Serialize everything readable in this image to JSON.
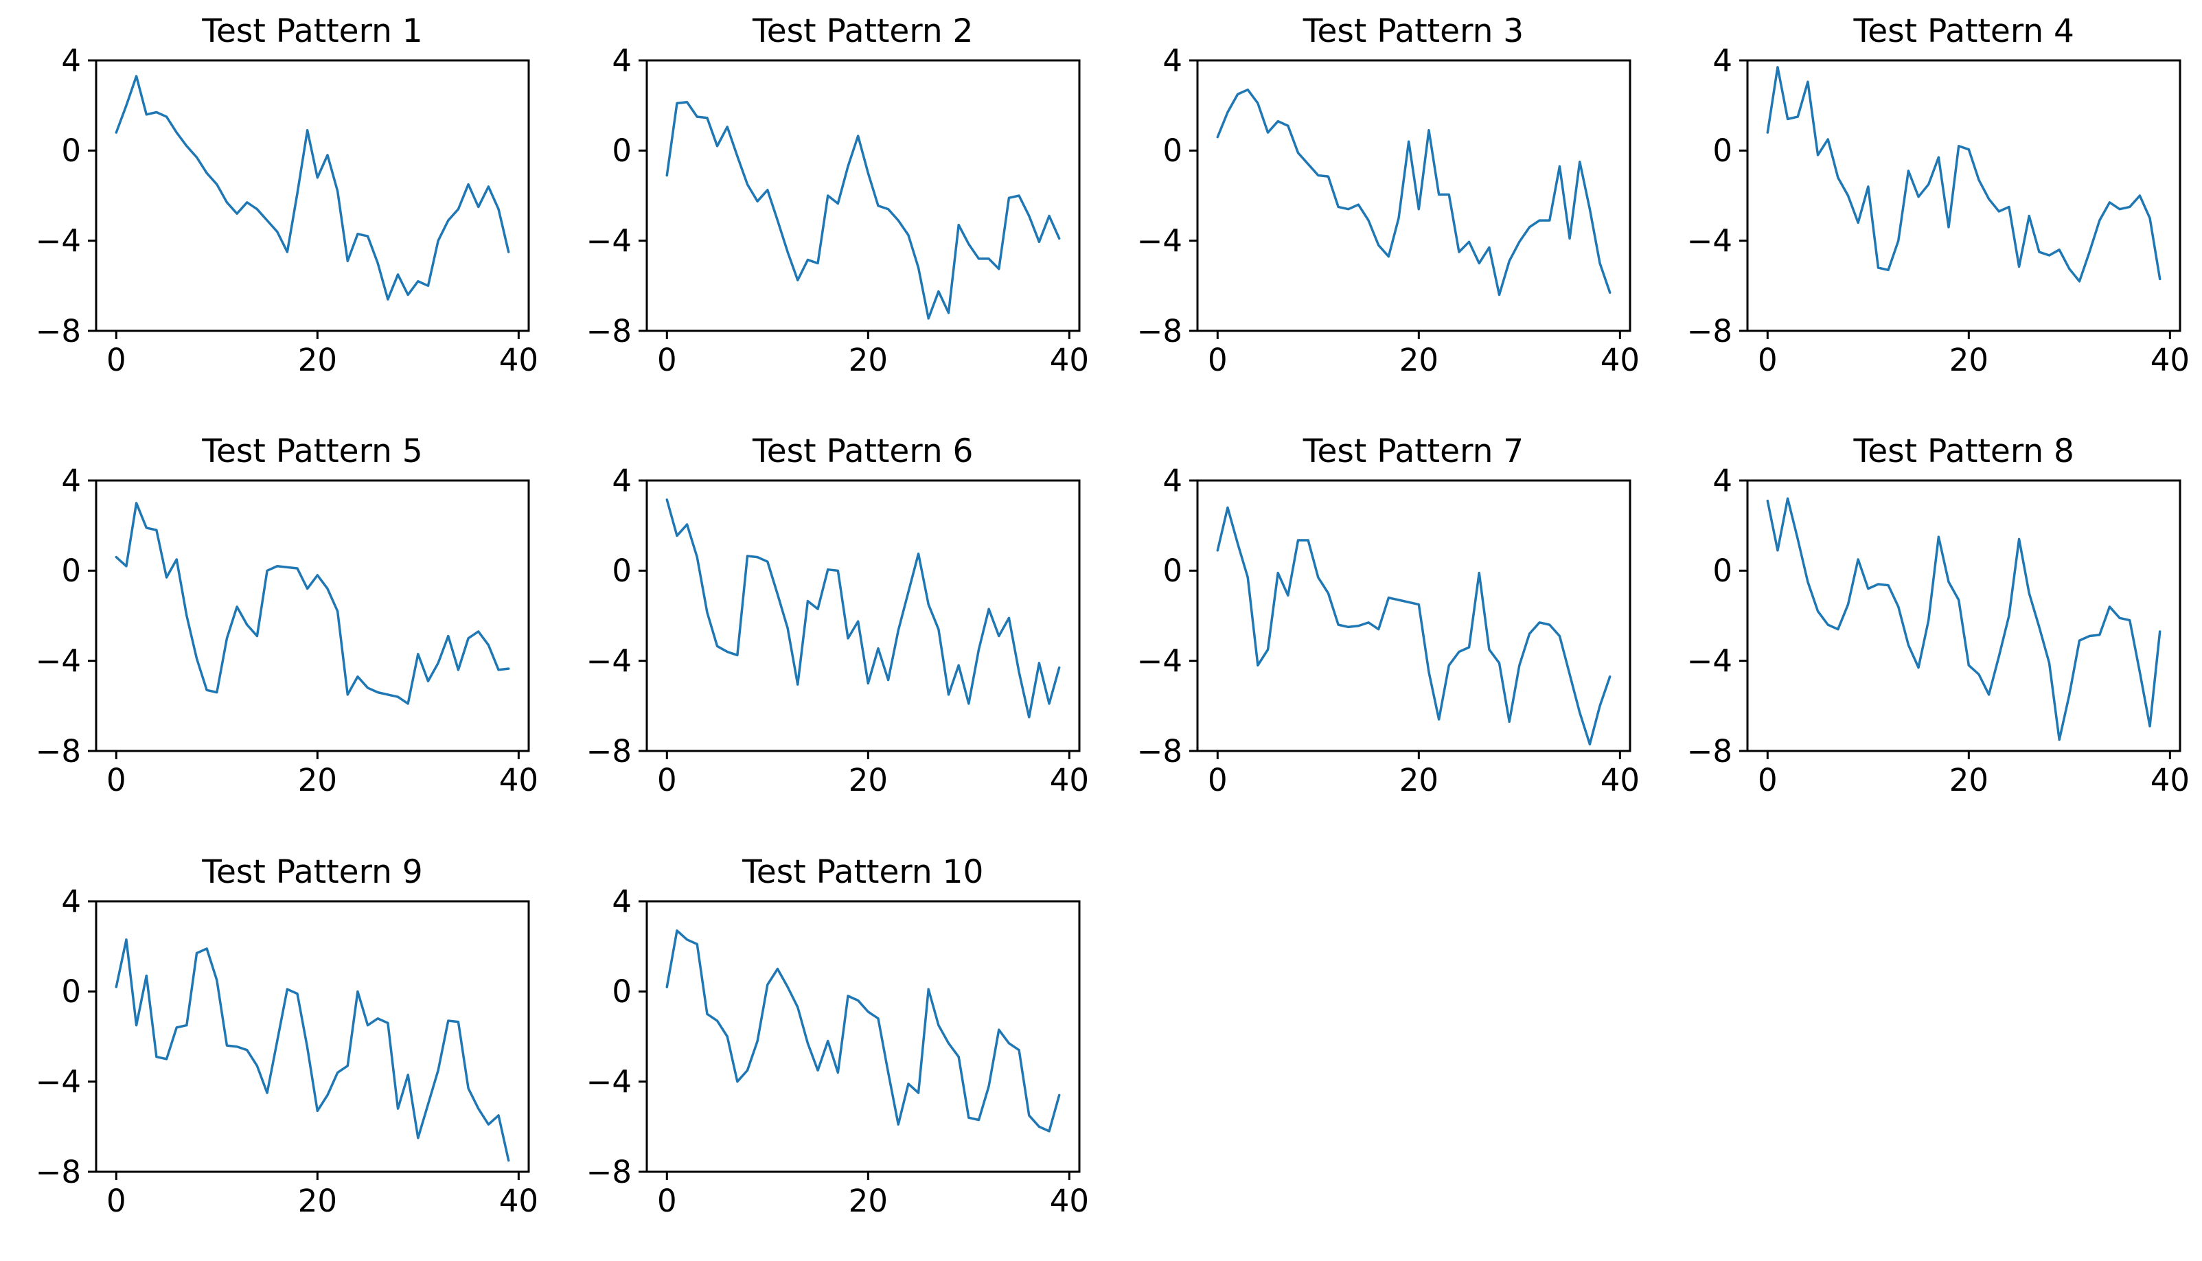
{
  "figure": {
    "background_color": "#ffffff",
    "line_color": "#1f77b4",
    "axis_color": "#000000",
    "text_color": "#000000",
    "x_tick_values": [
      0,
      20,
      40
    ],
    "x_tick_labels": [
      "0",
      "20",
      "40"
    ],
    "y_tick_values": [
      4,
      0,
      -4,
      -8
    ],
    "y_tick_labels": [
      "4",
      "0",
      "−4",
      "−8"
    ],
    "xlim": [
      -2,
      41
    ],
    "ylim": [
      -8,
      4
    ],
    "grid": "off",
    "legend": "none",
    "x": [
      0,
      1,
      2,
      3,
      4,
      5,
      6,
      7,
      8,
      9,
      10,
      11,
      12,
      13,
      14,
      15,
      16,
      17,
      18,
      19,
      20,
      21,
      22,
      23,
      24,
      25,
      26,
      27,
      28,
      29,
      30,
      31,
      32,
      33,
      34,
      35,
      36,
      37,
      38,
      39
    ]
  },
  "chart_data": [
    {
      "type": "line",
      "title": "Test Pattern 1",
      "xlabel": "",
      "ylabel": "",
      "values": [
        0.8,
        2.0,
        3.3,
        1.6,
        1.7,
        1.5,
        0.8,
        0.2,
        -0.3,
        -1.0,
        -1.5,
        -2.3,
        -2.8,
        -2.3,
        -2.6,
        -3.1,
        -3.6,
        -4.5,
        -1.9,
        0.9,
        -1.2,
        -0.2,
        -1.8,
        -4.9,
        -3.7,
        -3.8,
        -5.0,
        -6.6,
        -5.5,
        -6.4,
        -5.8,
        -6.0,
        -4.0,
        -3.1,
        -2.6,
        -1.5,
        -2.5,
        -1.6,
        -2.6,
        -4.5
      ]
    },
    {
      "type": "line",
      "title": "Test Pattern 2",
      "xlabel": "",
      "ylabel": "",
      "values": [
        -1.1,
        2.1,
        2.15,
        1.5,
        1.45,
        0.2,
        1.05,
        -0.25,
        -1.5,
        -2.25,
        -1.75,
        -3.1,
        -4.5,
        -5.75,
        -4.85,
        -5.0,
        -2.0,
        -2.35,
        -0.7,
        0.65,
        -1.0,
        -2.45,
        -2.6,
        -3.1,
        -3.75,
        -5.2,
        -7.45,
        -6.25,
        -7.2,
        -3.3,
        -4.15,
        -4.8,
        -4.8,
        -5.25,
        -2.1,
        -2.0,
        -2.9,
        -4.05,
        -2.9,
        -3.9
      ]
    },
    {
      "type": "line",
      "title": "Test Pattern 3",
      "xlabel": "",
      "ylabel": "",
      "values": [
        0.6,
        1.7,
        2.5,
        2.7,
        2.1,
        0.8,
        1.3,
        1.1,
        -0.1,
        -0.6,
        -1.1,
        -1.15,
        -2.5,
        -2.6,
        -2.4,
        -3.1,
        -4.2,
        -4.7,
        -3.0,
        0.4,
        -2.6,
        0.9,
        -1.95,
        -1.95,
        -4.5,
        -4.05,
        -5.0,
        -4.3,
        -6.4,
        -4.9,
        -4.05,
        -3.4,
        -3.1,
        -3.1,
        -0.7,
        -3.9,
        -0.5,
        -2.6,
        -5.0,
        -6.3
      ]
    },
    {
      "type": "line",
      "title": "Test Pattern 4",
      "xlabel": "",
      "ylabel": "",
      "values": [
        0.8,
        3.7,
        1.4,
        1.5,
        3.05,
        -0.2,
        0.5,
        -1.2,
        -2.0,
        -3.2,
        -1.6,
        -5.2,
        -5.3,
        -4.0,
        -0.9,
        -2.05,
        -1.5,
        -0.3,
        -3.4,
        0.2,
        0.05,
        -1.3,
        -2.15,
        -2.7,
        -2.5,
        -5.15,
        -2.9,
        -4.5,
        -4.65,
        -4.4,
        -5.25,
        -5.8,
        -4.5,
        -3.1,
        -2.3,
        -2.6,
        -2.5,
        -2.0,
        -3.0,
        -5.7
      ]
    },
    {
      "type": "line",
      "title": "Test Pattern 5",
      "xlabel": "",
      "ylabel": "",
      "values": [
        0.6,
        0.2,
        3.0,
        1.9,
        1.8,
        -0.3,
        0.5,
        -2.0,
        -3.9,
        -5.3,
        -5.4,
        -3.0,
        -1.6,
        -2.4,
        -2.9,
        0.0,
        0.2,
        0.15,
        0.1,
        -0.8,
        -0.2,
        -0.8,
        -1.8,
        -5.5,
        -4.7,
        -5.2,
        -5.4,
        -5.5,
        -5.6,
        -5.9,
        -3.7,
        -4.9,
        -4.1,
        -2.9,
        -4.4,
        -3.0,
        -2.7,
        -3.3,
        -4.4,
        -4.35
      ]
    },
    {
      "type": "line",
      "title": "Test Pattern 6",
      "xlabel": "",
      "ylabel": "",
      "values": [
        3.15,
        1.55,
        2.05,
        0.6,
        -1.85,
        -3.35,
        -3.6,
        -3.75,
        0.65,
        0.6,
        0.4,
        -1.05,
        -2.55,
        -5.05,
        -1.35,
        -1.7,
        0.05,
        0.0,
        -3.0,
        -2.25,
        -5.0,
        -3.45,
        -4.85,
        -2.65,
        -0.95,
        0.75,
        -1.5,
        -2.6,
        -5.5,
        -4.2,
        -5.9,
        -3.5,
        -1.7,
        -2.9,
        -2.1,
        -4.5,
        -6.5,
        -4.1,
        -5.9,
        -4.3
      ]
    },
    {
      "type": "line",
      "title": "Test Pattern 7",
      "xlabel": "",
      "ylabel": "",
      "values": [
        0.9,
        2.8,
        1.2,
        -0.3,
        -4.2,
        -3.5,
        -0.1,
        -1.1,
        1.35,
        1.35,
        -0.3,
        -1.0,
        -2.4,
        -2.5,
        -2.45,
        -2.3,
        -2.6,
        -1.2,
        -1.3,
        -1.4,
        -1.5,
        -4.5,
        -6.6,
        -4.2,
        -3.6,
        -3.4,
        -0.1,
        -3.5,
        -4.1,
        -6.7,
        -4.2,
        -2.8,
        -2.3,
        -2.4,
        -2.9,
        -4.6,
        -6.3,
        -7.7,
        -6.0,
        -4.7
      ]
    },
    {
      "type": "line",
      "title": "Test Pattern 8",
      "xlabel": "",
      "ylabel": "",
      "values": [
        3.1,
        0.9,
        3.2,
        1.4,
        -0.5,
        -1.8,
        -2.4,
        -2.6,
        -1.5,
        0.5,
        -0.8,
        -0.6,
        -0.65,
        -1.6,
        -3.3,
        -4.3,
        -2.2,
        1.5,
        -0.5,
        -1.3,
        -4.2,
        -4.6,
        -5.5,
        -3.8,
        -2.0,
        1.4,
        -1.0,
        -2.5,
        -4.1,
        -7.5,
        -5.5,
        -3.1,
        -2.9,
        -2.85,
        -1.6,
        -2.1,
        -2.2,
        -4.5,
        -6.9,
        -2.7
      ]
    },
    {
      "type": "line",
      "title": "Test Pattern 9",
      "xlabel": "",
      "ylabel": "",
      "values": [
        0.2,
        2.3,
        -1.5,
        0.7,
        -2.9,
        -3.0,
        -1.6,
        -1.5,
        1.7,
        1.9,
        0.5,
        -2.4,
        -2.45,
        -2.6,
        -3.3,
        -4.5,
        -2.2,
        0.1,
        -0.1,
        -2.5,
        -5.3,
        -4.6,
        -3.6,
        -3.3,
        0.0,
        -1.5,
        -1.2,
        -1.4,
        -5.2,
        -3.7,
        -6.5,
        -5.0,
        -3.5,
        -1.3,
        -1.35,
        -4.3,
        -5.2,
        -5.9,
        -5.5,
        -7.5
      ]
    },
    {
      "type": "line",
      "title": "Test Pattern 10",
      "xlabel": "",
      "ylabel": "",
      "values": [
        0.2,
        2.7,
        2.3,
        2.1,
        -1.0,
        -1.3,
        -2.0,
        -4.0,
        -3.5,
        -2.2,
        0.3,
        1.0,
        0.2,
        -0.7,
        -2.3,
        -3.5,
        -2.2,
        -3.6,
        -0.2,
        -0.4,
        -0.9,
        -1.2,
        -3.6,
        -5.9,
        -4.1,
        -4.5,
        0.1,
        -1.5,
        -2.3,
        -2.9,
        -5.6,
        -5.7,
        -4.2,
        -1.7,
        -2.3,
        -2.6,
        -5.5,
        -6.0,
        -6.2,
        -4.6
      ]
    }
  ],
  "layout": {
    "columns": 4,
    "rows": 3
  }
}
